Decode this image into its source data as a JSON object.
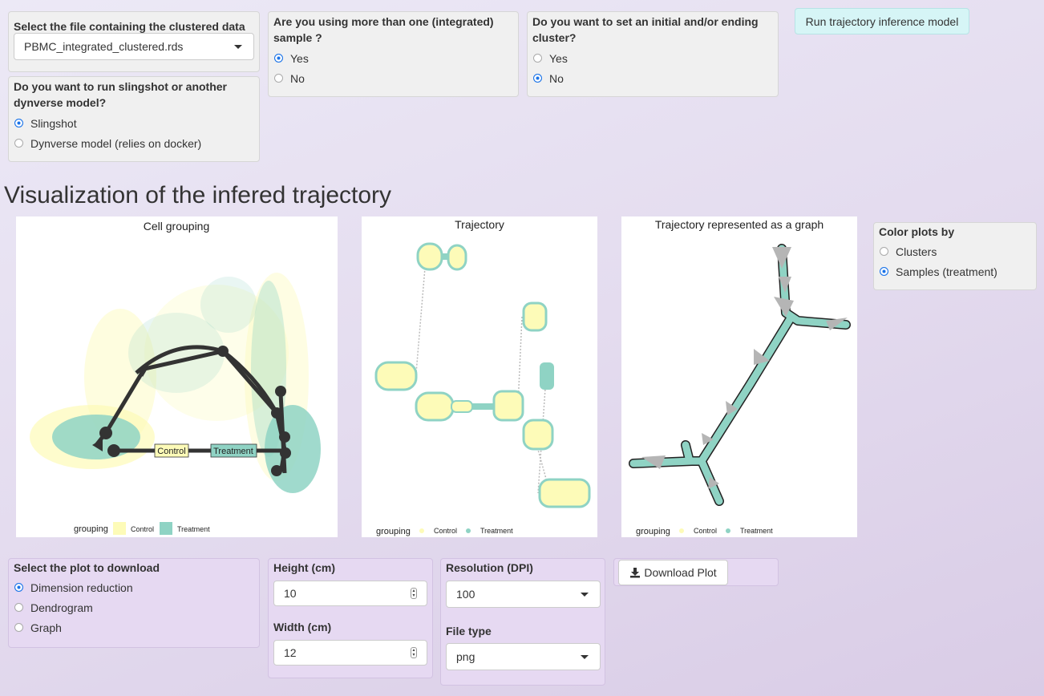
{
  "file_select": {
    "label": "Select the file containing the clustered data",
    "value": "PBMC_integrated_clustered.rds"
  },
  "model_choice": {
    "label": "Do you want to run slingshot or another dynverse model?",
    "options": [
      "Slingshot",
      "Dynverse model (relies on docker)"
    ],
    "selected": "Slingshot"
  },
  "integrated": {
    "label": "Are you using more than one (integrated) sample ?",
    "options": [
      "Yes",
      "No"
    ],
    "selected": "Yes"
  },
  "cluster_choice": {
    "label": "Do you want to set an initial and/or ending cluster?",
    "options": [
      "Yes",
      "No"
    ],
    "selected": "No"
  },
  "run_button": {
    "label": "Run trajectory inference model"
  },
  "section_title": "Visualization of the infered trajectory",
  "plots": {
    "cell_grouping": {
      "title": "Cell grouping",
      "legend_title": "grouping",
      "legend_items": [
        "Control",
        "Treatment"
      ],
      "labels": [
        "Control",
        "Treatment"
      ]
    },
    "trajectory": {
      "title": "Trajectory",
      "legend_title": "grouping",
      "legend_items": [
        "Control",
        "Treatment"
      ]
    },
    "graph": {
      "title": "Trajectory represented as a graph",
      "legend_title": "grouping",
      "legend_items": [
        "Control",
        "Treatment"
      ]
    },
    "colors": {
      "control": "#fdfbb8",
      "treatment": "#8fd3c4",
      "path": "#333333"
    }
  },
  "color_by": {
    "label": "Color plots by",
    "options": [
      "Clusters",
      "Samples (treatment)"
    ],
    "selected": "Samples (treatment)"
  },
  "download_plot_select": {
    "label": "Select the plot to download",
    "options": [
      "Dimension reduction",
      "Dendrogram",
      "Graph"
    ],
    "selected": "Dimension reduction"
  },
  "height": {
    "label": "Height (cm)",
    "value": "10"
  },
  "width": {
    "label": "Width (cm)",
    "value": "12"
  },
  "resolution": {
    "label": "Resolution (DPI)",
    "value": "100"
  },
  "file_type": {
    "label": "File type",
    "value": "png"
  },
  "download_button": {
    "label": "Download Plot",
    "icon": "download-icon"
  }
}
